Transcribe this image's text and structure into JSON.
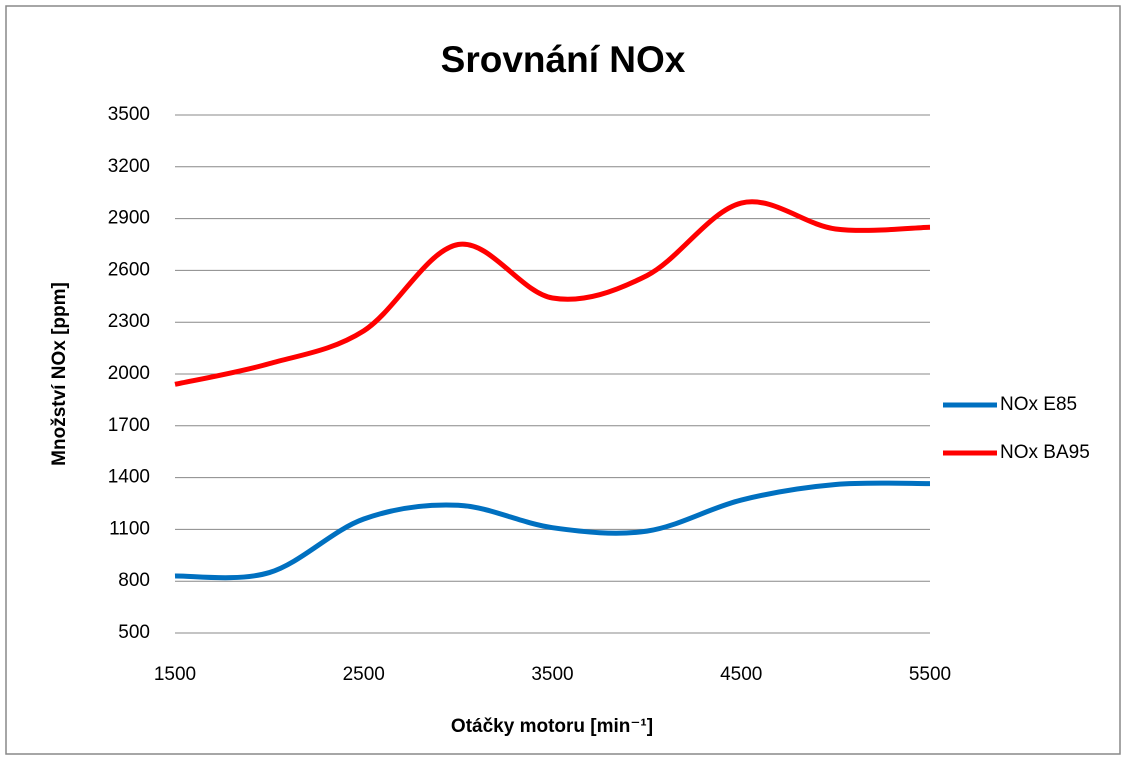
{
  "chart_data": {
    "type": "line",
    "title": "Srovnání NOx",
    "x_label": "Otáčky motoru [min⁻¹]",
    "y_label": "Množství NOx [ppm]",
    "x": [
      1500,
      2000,
      2500,
      3000,
      3500,
      4000,
      4500,
      5000,
      5500
    ],
    "series": [
      {
        "name": "NOx E85",
        "color": "#0070c0",
        "values": [
          830,
          850,
          1160,
          1240,
          1110,
          1090,
          1270,
          1360,
          1365
        ]
      },
      {
        "name": "NOx BA95",
        "color": "#ff0000",
        "values": [
          1940,
          2060,
          2250,
          2750,
          2440,
          2570,
          2990,
          2840,
          2850
        ]
      }
    ],
    "xlim": [
      1500,
      5500
    ],
    "xticks": [
      1500,
      2500,
      3500,
      4500,
      5500
    ],
    "ylim": [
      500,
      3500
    ],
    "yticks": [
      500,
      800,
      1100,
      1400,
      1700,
      2000,
      2300,
      2600,
      2900,
      3200,
      3500
    ],
    "grid": true,
    "smooth": true,
    "legend": "right"
  }
}
